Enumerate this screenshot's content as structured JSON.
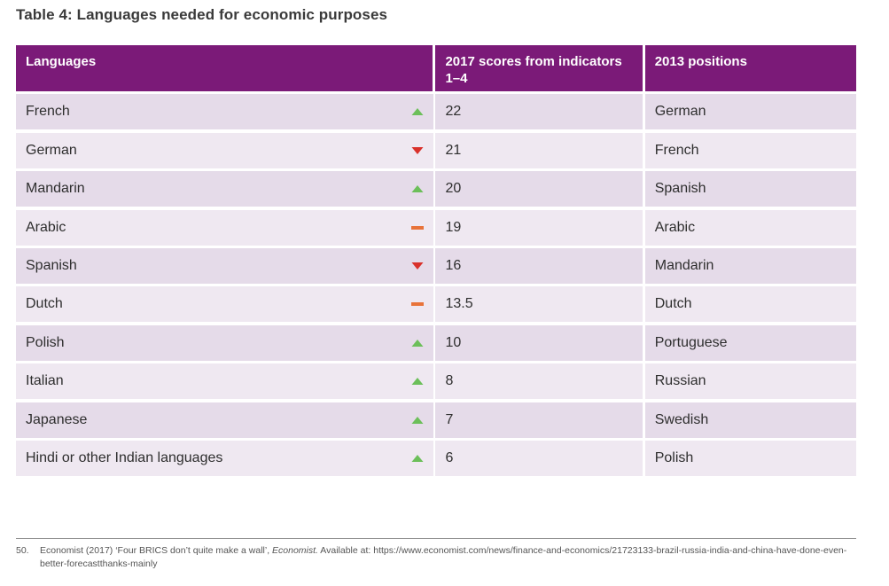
{
  "title": "Table 4: Languages needed for economic purposes",
  "colors": {
    "header_bg": "#7b1a78",
    "up": "#6cbf5a",
    "down": "#d9312b",
    "same": "#e8733a"
  },
  "table": {
    "headers": [
      "Languages",
      "2017 scores from indicators 1–4",
      "2013 positions"
    ],
    "rows": [
      {
        "language": "French",
        "trend": "up",
        "score": "22",
        "pos2013": "German"
      },
      {
        "language": "German",
        "trend": "down",
        "score": "21",
        "pos2013": "French"
      },
      {
        "language": "Mandarin",
        "trend": "up",
        "score": "20",
        "pos2013": "Spanish"
      },
      {
        "language": "Arabic",
        "trend": "same",
        "score": "19",
        "pos2013": "Arabic"
      },
      {
        "language": "Spanish",
        "trend": "down",
        "score": "16",
        "pos2013": "Mandarin"
      },
      {
        "language": "Dutch",
        "trend": "same",
        "score": "13.5",
        "pos2013": "Dutch"
      },
      {
        "language": "Polish",
        "trend": "up",
        "score": "10",
        "pos2013": "Portuguese"
      },
      {
        "language": "Italian",
        "trend": "up",
        "score": "8",
        "pos2013": "Russian"
      },
      {
        "language": "Japanese",
        "trend": "up",
        "score": "7",
        "pos2013": "Swedish"
      },
      {
        "language": "Hindi or other Indian languages",
        "trend": "up",
        "score": "6",
        "pos2013": "Polish"
      }
    ]
  },
  "footnote": {
    "number": "50.",
    "text_before": "Economist (2017) ‘Four BRICS don’t quite make a wall’, ",
    "text_italic": "Economist.",
    "text_after": " Available at: https://www.economist.com/news/finance-and-economics/21723133-brazil-russia-india-and-china-have-done-even-better-forecastthanks-mainly"
  }
}
